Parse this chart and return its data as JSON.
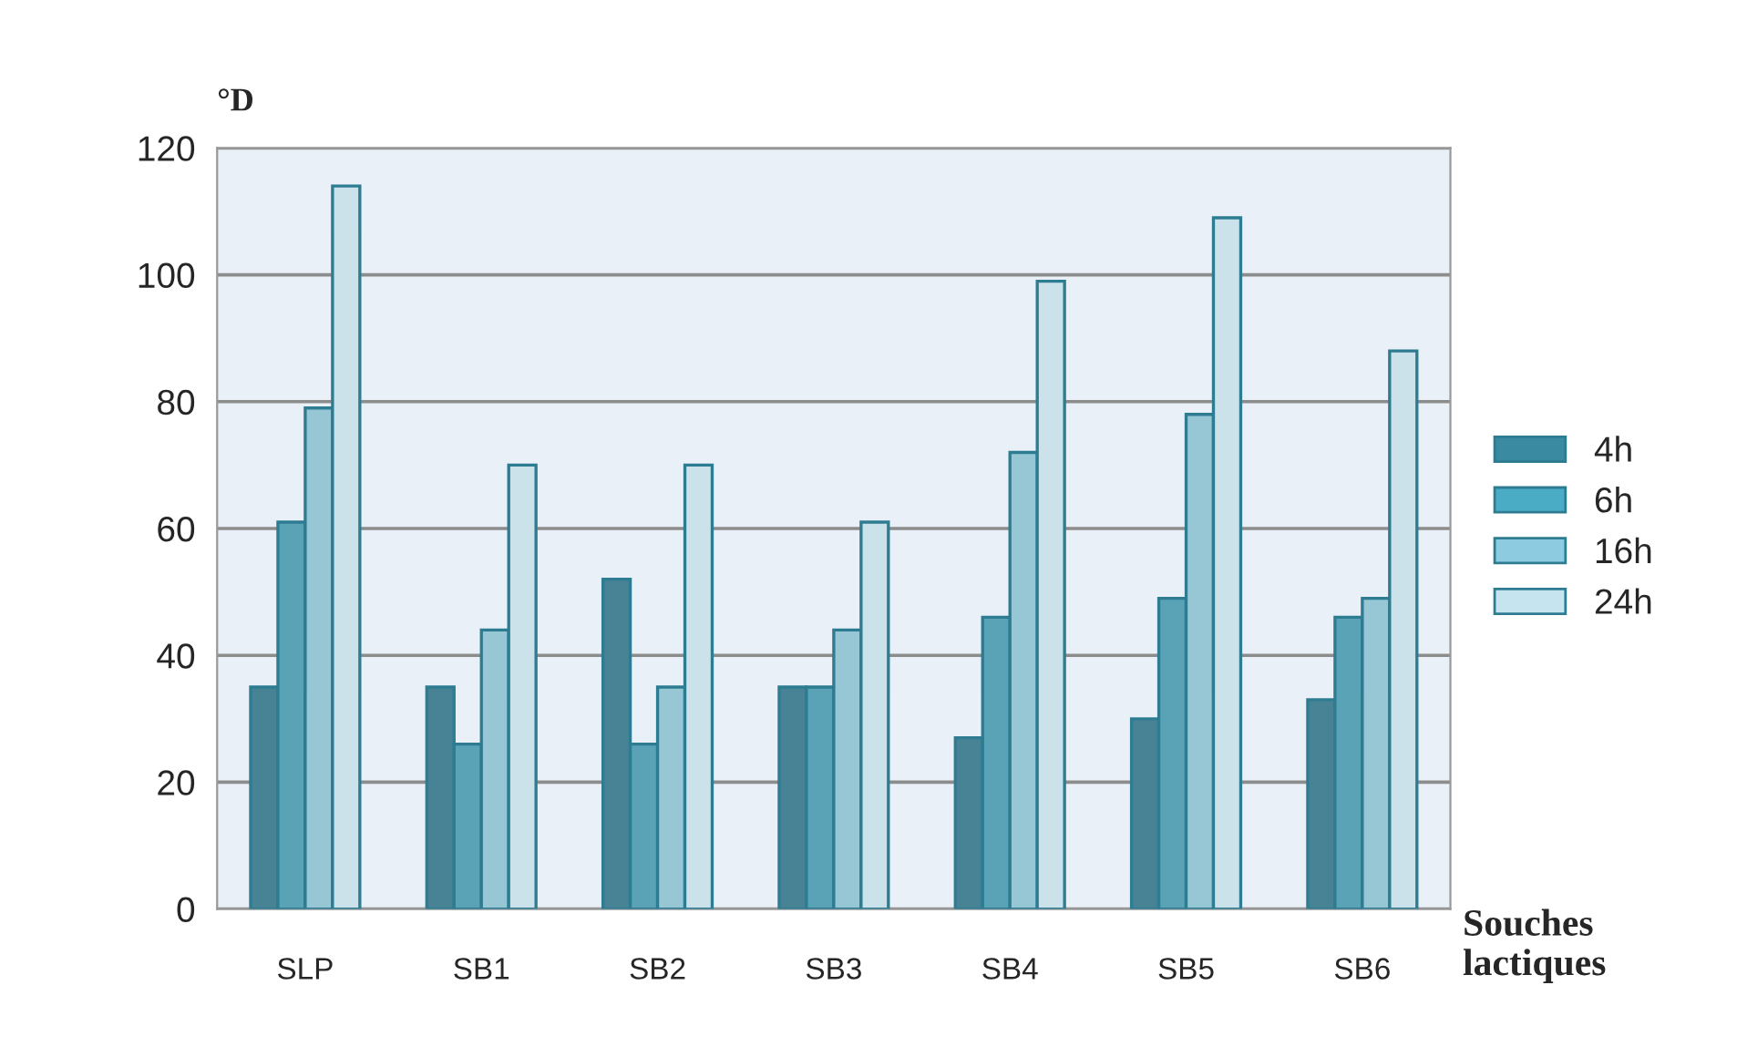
{
  "chart_data": {
    "type": "bar",
    "ylabel": "°D",
    "xlabel": "Souches lactiques",
    "categories": [
      "SLP",
      "SB1",
      "SB2",
      "SB3",
      "SB4",
      "SB5",
      "SB6"
    ],
    "series": [
      {
        "name": "4h",
        "color": "#3a8aa2",
        "values": [
          35,
          35,
          52,
          35,
          27,
          30,
          33
        ]
      },
      {
        "name": "6h",
        "color": "#4bacc6",
        "values": [
          61,
          26,
          26,
          35,
          46,
          49,
          46
        ]
      },
      {
        "name": "16h",
        "color": "#8ccbe0",
        "values": [
          79,
          44,
          35,
          44,
          72,
          78,
          49
        ]
      },
      {
        "name": "24h",
        "color": "#c6e4ef",
        "values": [
          114,
          70,
          70,
          61,
          99,
          109,
          88
        ]
      }
    ],
    "ylim": [
      0,
      120
    ],
    "yticks": [
      0,
      20,
      40,
      60,
      80,
      100,
      120
    ],
    "grid": "y",
    "legend": "right"
  }
}
